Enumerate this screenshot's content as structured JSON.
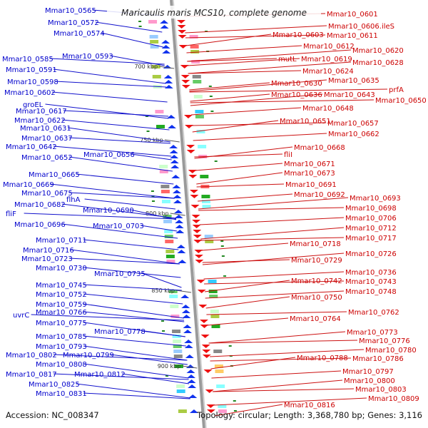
{
  "title": "Maricaulis maris MCS10, complete genome",
  "accession": "Accession: NC_008347",
  "topology": "Topology: circular; Length: 3,368,780 bp; Genes: 3,116",
  "colors": {
    "plus": "#0000dd",
    "minus": "#dd0000",
    "backbone": "#888888"
  },
  "ticks": [
    "700 kbp",
    "750 kbp",
    "800 kbp",
    "850 kbp",
    "900 kbp"
  ],
  "left_labels": [
    "Mmar10_0565",
    "Mmar10_0572",
    "Mmar10_0574",
    "Mmar10_0585",
    "Mmar10_0593",
    "Mmar10_0591",
    "Mmar10_0598",
    "Mmar10_0602",
    "groEL",
    "Mmar10_0617",
    "Mmar10_0622",
    "Mmar10_0631",
    "Mmar10_0637",
    "Mmar10_0642",
    "Mmar10_0652",
    "Mmar10_0656",
    "Mmar10_0665",
    "Mmar10_0669",
    "Mmar10_0675",
    "flhA",
    "Mmar10_0682",
    "fliF",
    "Mmar10_0690",
    "Mmar10_0696",
    "Mmar10_0703",
    "Mmar10_0711",
    "Mmar10_0716",
    "Mmar10_0723",
    "Mmar10_0730",
    "Mmar10_0735",
    "Mmar10_0745",
    "Mmar10_0752",
    "Mmar10_0759",
    "uvrC",
    "Mmar10_0766",
    "Mmar10_0775",
    "Mmar10_0778",
    "Mmar10_0785",
    "Mmar10_0793",
    "Mmar10_0802",
    "Mmar10_0799",
    "Mmar10_0808",
    "Mmar10_0817",
    "Mmar10_0812",
    "Mmar10_0825",
    "Mmar10_0831"
  ],
  "right_labels": [
    "Mmar10_0601",
    "Mmar10_0606.ileS",
    "Mmar10_0603",
    "Mmar10_0611",
    "Mmar10_0612",
    "Mmar10_0620",
    "mutL",
    "Mmar10_0619",
    "Mmar10_0628",
    "Mmar10_0624",
    "Mmar10_0630",
    "Mmar10_0635",
    "prfA",
    "Mmar10_0636",
    "Mmar10_0643",
    "Mmar10_0650",
    "Mmar10_0648",
    "Mmar10_0651",
    "Mmar10_0657",
    "Mmar10_0662",
    "Mmar10_0668",
    "fliI",
    "Mmar10_0671",
    "Mmar10_0673",
    "Mmar10_0691",
    "Mmar10_0692",
    "Mmar10_0693",
    "Mmar10_0698",
    "Mmar10_0706",
    "Mmar10_0712",
    "Mmar10_0717",
    "Mmar10_0718",
    "Mmar10_0726",
    "Mmar10_0729",
    "Mmar10_0736",
    "Mmar10_0742",
    "Mmar10_0743",
    "Mmar10_0748",
    "Mmar10_0750",
    "Mmar10_0762",
    "Mmar10_0764",
    "Mmar10_0773",
    "Mmar10_0776",
    "Mmar10_0780",
    "Mmar10_0788",
    "Mmar10_0786",
    "Mmar10_0797",
    "Mmar10_0800",
    "Mmar10_0803",
    "Mmar10_0809",
    "Mmar10_0816"
  ]
}
